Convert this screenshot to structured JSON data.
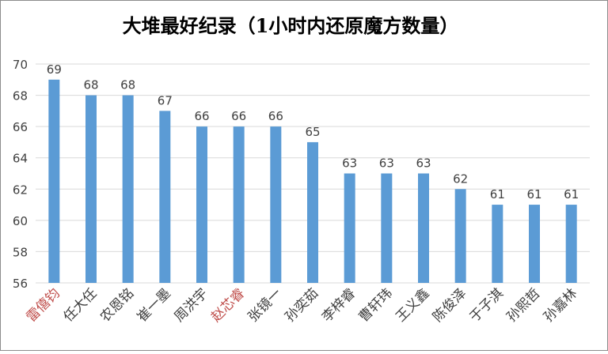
{
  "chart_data": {
    "type": "bar",
    "title": "大堆最好纪录（1小时内还原魔方数量）",
    "xlabel": "",
    "ylabel": "",
    "ylim": [
      56,
      70
    ],
    "yticks": [
      56,
      58,
      60,
      62,
      64,
      66,
      68,
      70
    ],
    "grid": true,
    "legend": "none",
    "categories": [
      "雷僖钧",
      "任大任",
      "农恩铭",
      "崔一墨",
      "周洪宇",
      "赵芯睿",
      "张镜一",
      "孙奕茹",
      "李梓睿",
      "曹轩玮",
      "王义鑫",
      "陈俊泽",
      "于子淇",
      "孙熙哲",
      "孙嘉林"
    ],
    "values": [
      69,
      68,
      68,
      67,
      66,
      66,
      66,
      65,
      63,
      63,
      63,
      62,
      61,
      61,
      61
    ],
    "colors": {
      "bar": "#5b9bd5",
      "grid": "#d9d9d9",
      "text": "#404040",
      "title": "#595959",
      "highlight_label": "#c0504d"
    },
    "highlighted_categories": [
      "雷僖钧",
      "赵芯睿"
    ]
  }
}
